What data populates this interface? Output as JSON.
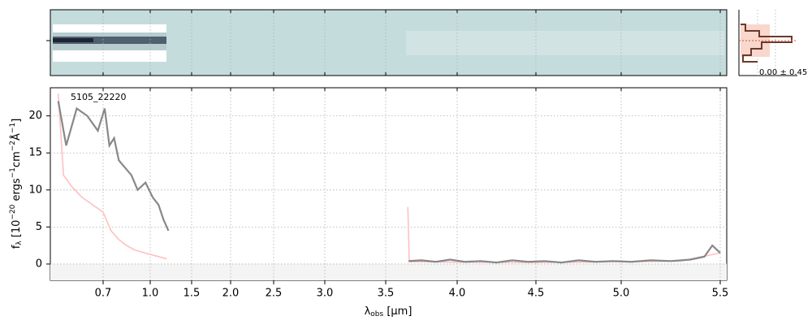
{
  "chart_data": {
    "type": "line",
    "annotation": "5105_22220",
    "stat_label": "0.00 ± 0.45",
    "xlabel": [
      "λ",
      "obs",
      " [μm]"
    ],
    "ylabel": [
      "f",
      "λ",
      " [10",
      "−20",
      " ergs",
      "−1",
      "cm",
      "−2",
      "Å",
      "−1",
      "]"
    ],
    "xlim": [
      0.6,
      5.53
    ],
    "ylim": [
      -2.2,
      23.8
    ],
    "xticks": [
      0.7,
      {
        "value": 1,
        "label": "1.0"
      },
      1.5,
      {
        "value": 2,
        "label": "2.0"
      },
      2.5,
      {
        "value": 3,
        "label": "3.0"
      },
      3.5,
      {
        "value": 4,
        "label": "4.0"
      },
      4.5,
      {
        "value": 5,
        "label": "5.0"
      },
      5.5
    ],
    "yticks": [
      0,
      5,
      10,
      15,
      20
    ],
    "grid": true,
    "series": [
      {
        "color": "#ffc0c0",
        "x": [
          0.615,
          0.625,
          0.64,
          0.66,
          0.7,
          0.75,
          0.8,
          0.85,
          0.9,
          1.0,
          1.1,
          1.2,
          2.4,
          3.655,
          3.665,
          3.8,
          4.0,
          4.5,
          5.0,
          5.3,
          5.5
        ],
        "values": [
          23,
          12,
          10.5,
          9,
          7,
          4.5,
          3.3,
          2.5,
          1.9,
          1.3,
          1.0,
          0.7,
          null,
          7.7,
          0.3,
          0.3,
          0.25,
          0.2,
          0.3,
          0.4,
          1.5
        ]
      },
      {
        "color": "#888888",
        "x": [
          0.615,
          0.63,
          0.65,
          0.67,
          0.69,
          0.71,
          0.74,
          0.77,
          0.8,
          0.84,
          0.88,
          0.92,
          0.97,
          1.03,
          1.1,
          1.16,
          1.22,
          2.4,
          3.66,
          3.75,
          3.85,
          3.95,
          4.05,
          4.15,
          4.25,
          4.35,
          4.45,
          4.55,
          4.65,
          4.75,
          4.85,
          4.95,
          5.05,
          5.15,
          5.25,
          5.35,
          5.42,
          5.46,
          5.5
        ],
        "values": [
          22,
          16,
          21,
          20,
          18,
          21,
          16,
          17,
          14,
          13,
          12,
          10,
          11,
          9,
          8,
          6,
          4.5,
          null,
          0.4,
          0.5,
          0.3,
          0.6,
          0.3,
          0.4,
          0.2,
          0.5,
          0.3,
          0.4,
          0.2,
          0.5,
          0.3,
          0.4,
          0.3,
          0.5,
          0.4,
          0.6,
          1.0,
          2.5,
          1.5
        ]
      }
    ]
  }
}
